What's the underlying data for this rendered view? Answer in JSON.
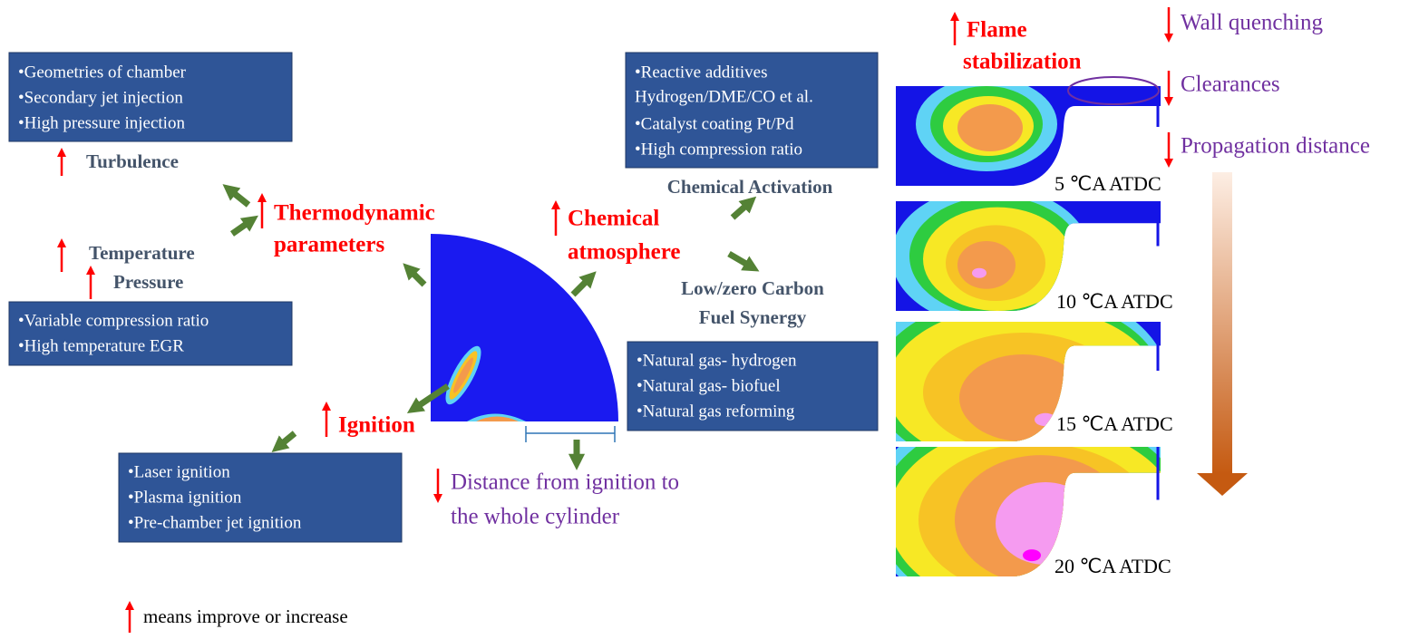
{
  "boxes": [
    {
      "lines": [
        "•Geometries of chamber",
        "•Secondary jet injection",
        "•High pressure injection"
      ]
    },
    {
      "lines": [
        "•Variable compression ratio",
        "•High temperature EGR"
      ]
    },
    {
      "lines": [
        "•Reactive additives",
        "Hydrogen/DME/CO et al.",
        "•Catalyst coating Pt/Pd",
        "•High compression ratio"
      ]
    },
    {
      "lines": [
        "•Natural gas- hydrogen",
        "•Natural gas- biofuel",
        "•Natural gas reforming"
      ]
    },
    {
      "lines": [
        "•Laser ignition",
        "•Plasma ignition",
        "•Pre-chamber jet ignition"
      ]
    }
  ],
  "labels": {
    "turbulence": "Turbulence",
    "temperature": "Temperature",
    "pressure": "Pressure",
    "thermodynamic": [
      "Thermodynamic",
      "parameters"
    ],
    "chemical_atmosphere": [
      "Chemical",
      "atmosphere"
    ],
    "chemical_activation": "Chemical Activation",
    "fuel_synergy": [
      "Low/zero Carbon",
      "Fuel Synergy"
    ],
    "ignition": "Ignition",
    "distance": [
      "Distance from ignition to",
      "the whole cylinder"
    ],
    "flame_stabilization": [
      "Flame",
      "stabilization"
    ],
    "wall_quenching": "Wall quenching",
    "clearances": "Clearances",
    "propagation_distance": "Propagation distance"
  },
  "snapshots": [
    "5 ℃A ATDC",
    "10 ℃A ATDC",
    "15 ℃A ATDC",
    "20 ℃A ATDC"
  ],
  "legend": "means improve or increase"
}
